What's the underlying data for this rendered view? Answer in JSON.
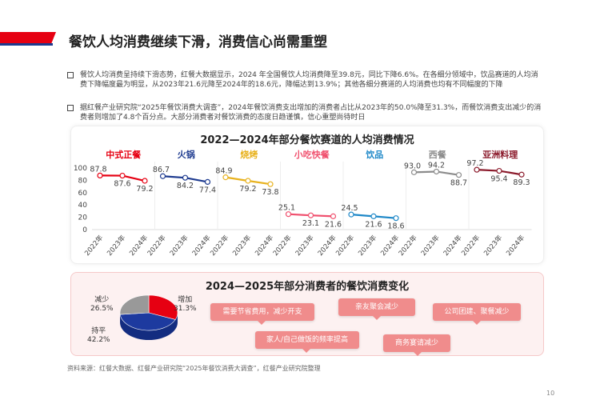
{
  "header": {
    "title": "餐饮人均消费继续下滑，消费信心尚需重塑"
  },
  "bullets": [
    "餐饮人均消费呈持续下滑态势，红餐大数据显示，2024 年全国餐饮人均消费降至39.8元，同比下降6.6%。在各细分领域中，饮品赛道的人均消费下降幅度最为明显，从2023年21.6元降至2024年的18.6元，降幅达到13.9%；其他各细分赛道的人均消费也均有不同幅度的下降",
    "据红餐产业研究院“2025年餐饮消费大调查”，2024年餐饮消费支出增加的消费者占比从2023年的50.0%降至31.3%，而餐饮消费支出减少的消费者则增加了4.8个百分点。大部分消费者对餐饮消费的态度日趋谨慎，信心重塑尚待时日"
  ],
  "chart_data": [
    {
      "type": "line",
      "title": "2022—2024年部分餐饮赛道的人均消费情况",
      "ylim": [
        0,
        100
      ],
      "yticks": [
        "0",
        "20",
        "40",
        "60",
        "80",
        "100"
      ],
      "categories": [
        "2022年",
        "2023年",
        "2024年"
      ],
      "series": [
        {
          "name": "中式正餐",
          "values": [
            87.8,
            87.6,
            79.2
          ],
          "color": "#e60012"
        },
        {
          "name": "火锅",
          "values": [
            86.7,
            84.2,
            77.4
          ],
          "color": "#1d3a8f"
        },
        {
          "name": "烧烤",
          "values": [
            84.9,
            79.2,
            73.8
          ],
          "color": "#e8b21e"
        },
        {
          "name": "小吃快餐",
          "values": [
            25.1,
            23.1,
            21.6
          ],
          "color": "#f0506e"
        },
        {
          "name": "饮品",
          "values": [
            24.5,
            21.6,
            18.6
          ],
          "color": "#1e88c8"
        },
        {
          "name": "西餐",
          "values": [
            93.0,
            94.2,
            88.7
          ],
          "color": "#8c8c8c"
        },
        {
          "name": "亚洲料理",
          "values": [
            97.2,
            95.4,
            89.3
          ],
          "color": "#8b1a2b"
        }
      ]
    },
    {
      "type": "pie",
      "title": "2024—2025年部分消费者的餐饮消费变化",
      "slices": [
        {
          "name": "增加",
          "value": 31.3,
          "label": "31.3%",
          "color": "#e60012"
        },
        {
          "name": "持平",
          "value": 42.2,
          "label": "42.2%",
          "color": "#1d3a9f"
        },
        {
          "name": "减少",
          "value": 26.5,
          "label": "26.5%",
          "color": "#999999"
        }
      ]
    }
  ],
  "reasons": [
    "需要节省费用，减少开支",
    "亲友聚会减少",
    "公司团建、聚餐减少",
    "家人/自己做饭的频率提高",
    "商务宴请减少"
  ],
  "source": "资料来源：红餐大数据、红餐产业研究院“2025年餐饮消费大调查”，红餐产业研究院整理",
  "page_number": "10"
}
